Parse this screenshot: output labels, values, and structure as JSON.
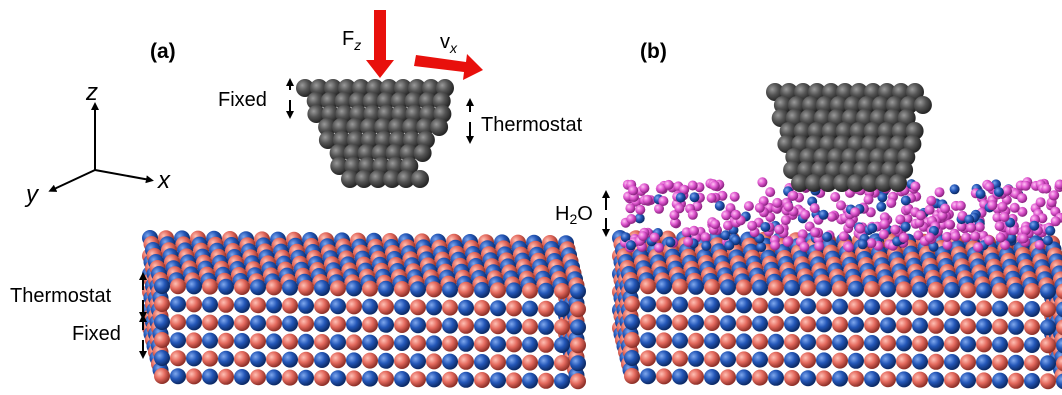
{
  "panels": [
    {
      "label": "(a)"
    },
    {
      "label": "(b)"
    }
  ],
  "axes": {
    "z": "z",
    "x": "x",
    "y": "y"
  },
  "annotations": {
    "force": {
      "symbol": "F",
      "subscript": "z"
    },
    "velocity": {
      "symbol": "v",
      "subscript": "x"
    },
    "tip_fixed": "Fixed",
    "tip_thermostat": "Thermostat",
    "slab_thermostat": "Thermostat",
    "slab_fixed": "Fixed",
    "water": {
      "base": "H",
      "subscript": "2",
      "suffix": "O"
    }
  }
}
